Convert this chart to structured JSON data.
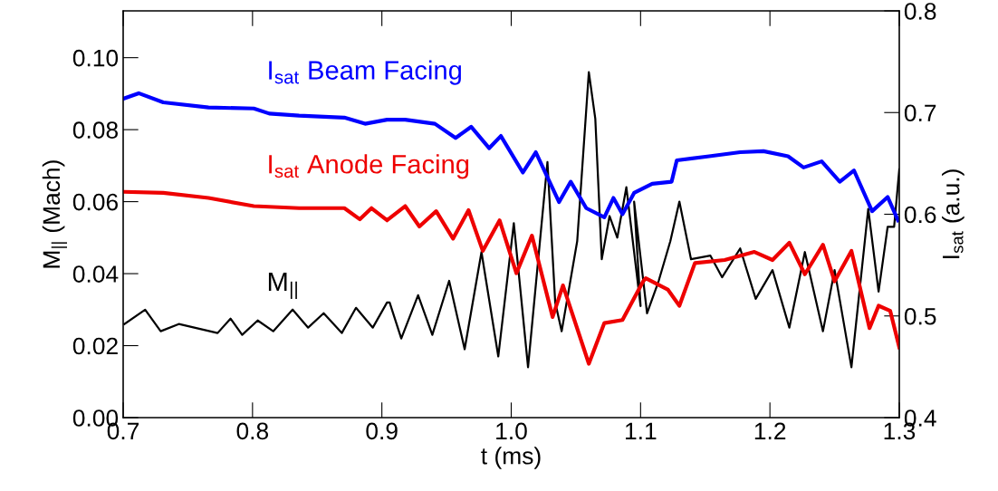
{
  "chart_data": {
    "type": "line",
    "xlabel": "t (ms)",
    "ylabel": "M$_{||}$ (Mach)",
    "y2label": "I$_{sat}$ (a.u.)",
    "xlim": [
      0.7,
      1.3
    ],
    "xticks": [
      {
        "value": 0.7,
        "label": "0.7"
      },
      {
        "value": 0.8,
        "label": "0.8"
      },
      {
        "value": 0.9,
        "label": "0.9"
      },
      {
        "value": 1.0,
        "label": "1.0"
      },
      {
        "value": 1.1,
        "label": "1.1"
      },
      {
        "value": 1.2,
        "label": "1.2"
      },
      {
        "value": 1.3,
        "label": "1.3"
      }
    ],
    "ylim": [
      0,
      0.113
    ],
    "yticks": [
      {
        "value": 0,
        "label": "0.00"
      },
      {
        "value": 0.02,
        "label": "0.02"
      },
      {
        "value": 0.04,
        "label": "0.04"
      },
      {
        "value": 0.06,
        "label": "0.06"
      },
      {
        "value": 0.08,
        "label": "0.08"
      },
      {
        "value": 0.1,
        "label": "0.10"
      }
    ],
    "y2lim": [
      0.4,
      0.8
    ],
    "y2ticks": [
      0.4,
      0.5,
      0.6,
      0.7,
      0.8
    ],
    "grid": false,
    "legend": false,
    "line_style": "solid",
    "marker": "none",
    "series": [
      {
        "name": "I$_{sat}$ Beam Facing",
        "color": "#0000ff",
        "axis": "y2",
        "x": [
          0.701,
          0.712,
          0.731,
          0.766,
          0.801,
          0.813,
          0.836,
          0.871,
          0.887,
          0.904,
          0.918,
          0.941,
          0.957,
          0.969,
          0.983,
          0.992,
          1.009,
          1.019,
          1.037,
          1.046,
          1.058,
          1.072,
          1.079,
          1.086,
          1.095,
          1.109,
          1.124,
          1.128,
          1.153,
          1.177,
          1.195,
          1.214,
          1.226,
          1.24,
          1.254,
          1.265,
          1.279,
          1.291,
          1.299
        ],
        "values": [
          0.714,
          0.719,
          0.71,
          0.705,
          0.704,
          0.699,
          0.697,
          0.695,
          0.689,
          0.693,
          0.693,
          0.689,
          0.675,
          0.686,
          0.665,
          0.677,
          0.641,
          0.661,
          0.612,
          0.632,
          0.606,
          0.597,
          0.616,
          0.6,
          0.621,
          0.63,
          0.632,
          0.653,
          0.657,
          0.661,
          0.662,
          0.657,
          0.646,
          0.652,
          0.632,
          0.643,
          0.603,
          0.617,
          0.594
        ]
      },
      {
        "name": "I$_{sat}$ Anode Facing",
        "color": "#ee0000",
        "axis": "y2",
        "x": [
          0.701,
          0.731,
          0.766,
          0.801,
          0.836,
          0.871,
          0.883,
          0.892,
          0.904,
          0.918,
          0.929,
          0.942,
          0.955,
          0.967,
          0.978,
          0.991,
          1.004,
          1.016,
          1.032,
          1.04,
          1.06,
          1.072,
          1.086,
          1.102,
          1.104,
          1.121,
          1.13,
          1.142,
          1.165,
          1.188,
          1.202,
          1.215,
          1.227,
          1.241,
          1.25,
          1.263,
          1.277,
          1.284,
          1.293,
          1.3
        ],
        "values": [
          0.622,
          0.621,
          0.616,
          0.608,
          0.606,
          0.606,
          0.595,
          0.606,
          0.594,
          0.608,
          0.588,
          0.603,
          0.576,
          0.604,
          0.564,
          0.594,
          0.542,
          0.579,
          0.499,
          0.53,
          0.453,
          0.493,
          0.496,
          0.534,
          0.537,
          0.526,
          0.51,
          0.552,
          0.555,
          0.563,
          0.555,
          0.572,
          0.541,
          0.57,
          0.534,
          0.564,
          0.488,
          0.51,
          0.505,
          0.469
        ]
      },
      {
        "name": "M$_{||}$",
        "color": "#000000",
        "axis": "y",
        "x": [
          0.701,
          0.717,
          0.729,
          0.743,
          0.773,
          0.783,
          0.792,
          0.804,
          0.816,
          0.831,
          0.843,
          0.855,
          0.869,
          0.88,
          0.893,
          0.904,
          0.906,
          0.915,
          0.928,
          0.939,
          0.952,
          0.964,
          0.977,
          0.99,
          1.002,
          1.013,
          1.028,
          1.034,
          1.039,
          1.051,
          1.06,
          1.065,
          1.07,
          1.076,
          1.082,
          1.089,
          1.1,
          1.095,
          1.105,
          1.114,
          1.123,
          1.13,
          1.139,
          1.154,
          1.163,
          1.177,
          1.189,
          1.202,
          1.215,
          1.227,
          1.241,
          1.25,
          1.263,
          1.276,
          1.284,
          1.291,
          1.296,
          1.3
        ],
        "values": [
          0.026,
          0.03,
          0.024,
          0.026,
          0.0235,
          0.0275,
          0.023,
          0.027,
          0.024,
          0.03,
          0.025,
          0.029,
          0.0235,
          0.0305,
          0.025,
          0.032,
          0.032,
          0.022,
          0.034,
          0.023,
          0.038,
          0.019,
          0.046,
          0.017,
          0.054,
          0.014,
          0.071,
          0.032,
          0.024,
          0.049,
          0.096,
          0.083,
          0.044,
          0.056,
          0.05,
          0.064,
          0.031,
          0.06,
          0.029,
          0.038,
          0.049,
          0.06,
          0.044,
          0.045,
          0.039,
          0.047,
          0.033,
          0.041,
          0.025,
          0.046,
          0.024,
          0.041,
          0.014,
          0.058,
          0.035,
          0.053,
          0.053,
          0.069
        ]
      }
    ]
  }
}
